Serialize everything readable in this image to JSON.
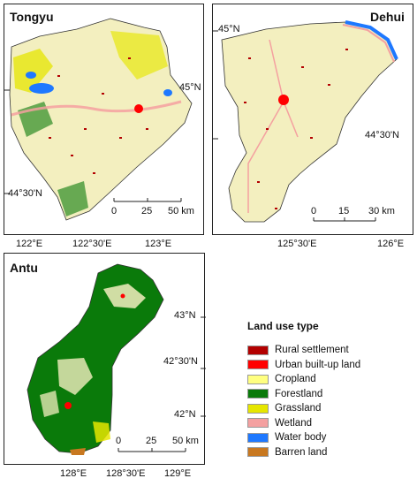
{
  "panels": {
    "tongyu": {
      "name": "Tongyu",
      "lat_labels": [
        "45°N",
        "44°30'N"
      ],
      "lon_labels": [
        "122°E",
        "122°30'E",
        "123°E"
      ],
      "scale_labels": [
        "0",
        "25",
        "50 km"
      ]
    },
    "dehui": {
      "name": "Dehui",
      "lat_labels": [
        "45°N",
        "44°30'N"
      ],
      "lon_labels": [
        "125°30'E",
        "126°E"
      ],
      "scale_labels": [
        "0",
        "15",
        "30 km"
      ]
    },
    "antu": {
      "name": "Antu",
      "lat_labels": [
        "43°N",
        "42°30'N",
        "42°N"
      ],
      "lon_labels": [
        "128°E",
        "128°30'E",
        "129°E"
      ],
      "scale_labels": [
        "0",
        "25",
        "50 km"
      ]
    }
  },
  "legend": {
    "title": "Land use type",
    "items": [
      {
        "label": "Rural settlement",
        "color": "#b30000"
      },
      {
        "label": "Urban built-up land",
        "color": "#ff0000"
      },
      {
        "label": "Cropland",
        "color": "#ffff80"
      },
      {
        "label": "Forestland",
        "color": "#0a7a0a"
      },
      {
        "label": "Grassland",
        "color": "#e6e600"
      },
      {
        "label": "Wetland",
        "color": "#f4a0a0"
      },
      {
        "label": "Water body",
        "color": "#1e78ff"
      },
      {
        "label": "Barren land",
        "color": "#c87820"
      }
    ]
  }
}
